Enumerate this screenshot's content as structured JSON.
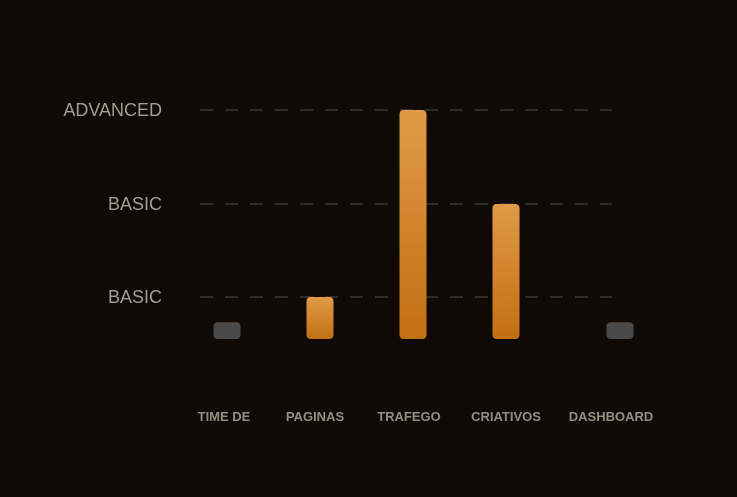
{
  "chart_data": {
    "type": "bar",
    "categories": [
      "TIME DE",
      "PAGINAS",
      "TRAFEGO",
      "CRIATIVOS",
      "DASHBOARD"
    ],
    "values": [
      0.4,
      1,
      3,
      2,
      0.4
    ],
    "bar_colors": [
      "#4a4a4a",
      "#c9791b",
      "#c9791b",
      "#c9791b",
      "#4a4a4a"
    ],
    "y_tick_labels": [
      "BASIC",
      "BASIC",
      "ADVANCED"
    ],
    "y_tick_levels": [
      1,
      2,
      3
    ],
    "ylim": [
      0,
      3
    ],
    "grid": "dashed horizontal",
    "legend": "none",
    "accent_gradient": [
      "#e09a48",
      "#c26f12"
    ],
    "background": "#0f0a06"
  }
}
